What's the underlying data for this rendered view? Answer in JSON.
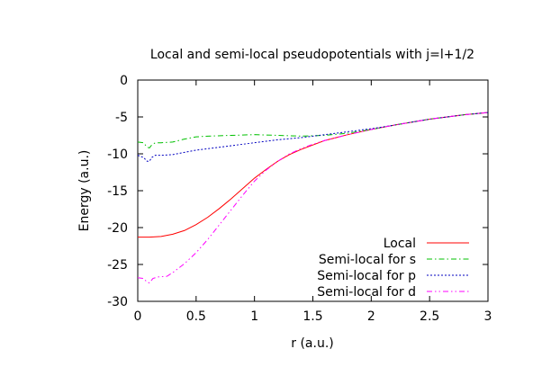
{
  "chart_data": {
    "type": "line",
    "title": "Local and semi-local pseudopotentials with j=l+1/2",
    "xlabel": "r (a.u.)",
    "ylabel": "Energy (a.u.)",
    "xlim": [
      0,
      3
    ],
    "ylim": [
      -30,
      0
    ],
    "xticks": [
      0,
      0.5,
      1,
      1.5,
      2,
      2.5,
      3
    ],
    "xtick_labels": [
      "0",
      "0.5",
      "1",
      "1.5",
      "2",
      "2.5",
      "3"
    ],
    "yticks": [
      0,
      -5,
      -10,
      -15,
      -20,
      -25,
      -30
    ],
    "ytick_labels": [
      "0",
      "-5",
      "-10",
      "-15",
      "-20",
      "-25",
      "-30"
    ],
    "grid": false,
    "legend_position": "bottom-right",
    "series": [
      {
        "name": "Local",
        "color": "#ff0000",
        "dash": "solid",
        "x": [
          0,
          0.1,
          0.2,
          0.3,
          0.4,
          0.5,
          0.6,
          0.7,
          0.8,
          0.9,
          1.0,
          1.1,
          1.2,
          1.3,
          1.4,
          1.5,
          1.6,
          1.7,
          1.8,
          2.0,
          2.2,
          2.5,
          2.8,
          3.0
        ],
        "y": [
          -21.3,
          -21.3,
          -21.2,
          -20.9,
          -20.4,
          -19.6,
          -18.6,
          -17.4,
          -16.1,
          -14.7,
          -13.3,
          -12.1,
          -11.0,
          -10.1,
          -9.4,
          -8.8,
          -8.2,
          -7.8,
          -7.4,
          -6.7,
          -6.1,
          -5.3,
          -4.7,
          -4.4
        ]
      },
      {
        "name": "Semi-local for s",
        "color": "#00c000",
        "dash": "dash-dot",
        "x": [
          0,
          0.05,
          0.08,
          0.1,
          0.12,
          0.15,
          0.2,
          0.3,
          0.4,
          0.5,
          0.6,
          0.8,
          1.0,
          1.2,
          1.4,
          1.6,
          1.8,
          2.0,
          2.2,
          2.5,
          2.8,
          3.0
        ],
        "y": [
          -8.4,
          -8.5,
          -9.1,
          -9.2,
          -8.8,
          -8.5,
          -8.5,
          -8.4,
          -8.0,
          -7.7,
          -7.6,
          -7.5,
          -7.4,
          -7.5,
          -7.6,
          -7.5,
          -7.2,
          -6.7,
          -6.1,
          -5.3,
          -4.7,
          -4.4
        ]
      },
      {
        "name": "Semi-local for p",
        "color": "#0000c0",
        "dash": "dotted",
        "x": [
          0,
          0.05,
          0.08,
          0.1,
          0.12,
          0.15,
          0.2,
          0.3,
          0.4,
          0.5,
          0.6,
          0.8,
          1.0,
          1.2,
          1.4,
          1.6,
          1.8,
          2.0,
          2.2,
          2.5,
          2.8,
          3.0
        ],
        "y": [
          -10.2,
          -10.5,
          -11.0,
          -11.0,
          -10.5,
          -10.2,
          -10.2,
          -10.1,
          -9.8,
          -9.5,
          -9.3,
          -8.9,
          -8.5,
          -8.1,
          -7.8,
          -7.4,
          -7.0,
          -6.6,
          -6.1,
          -5.3,
          -4.7,
          -4.4
        ]
      },
      {
        "name": "Semi-local for d",
        "color": "#ff00ff",
        "dash": "dash-dot-dot",
        "x": [
          0,
          0.05,
          0.08,
          0.1,
          0.13,
          0.17,
          0.25,
          0.3,
          0.4,
          0.5,
          0.6,
          0.7,
          0.8,
          0.9,
          1.0,
          1.1,
          1.2,
          1.3,
          1.4,
          1.5,
          1.6,
          1.8,
          2.0,
          2.2,
          2.5,
          2.8,
          3.0
        ],
        "y": [
          -26.8,
          -26.9,
          -27.4,
          -27.5,
          -26.9,
          -26.7,
          -26.6,
          -26.1,
          -24.9,
          -23.4,
          -21.6,
          -19.6,
          -17.6,
          -15.6,
          -13.7,
          -12.2,
          -11.0,
          -10.0,
          -9.3,
          -8.7,
          -8.2,
          -7.4,
          -6.7,
          -6.1,
          -5.3,
          -4.7,
          -4.4
        ]
      }
    ]
  }
}
